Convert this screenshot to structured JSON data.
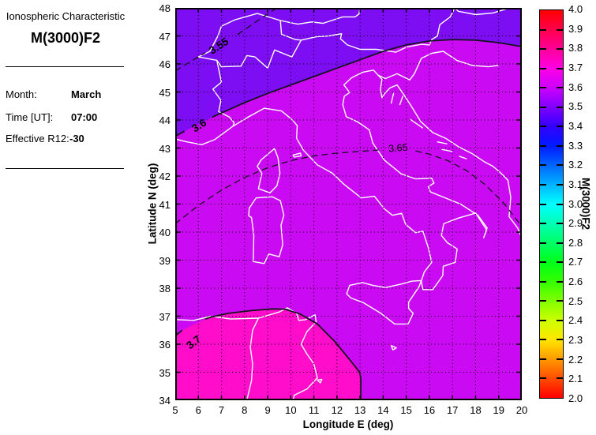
{
  "panel": {
    "heading": "Ionospheric Characteristic",
    "title": "M(3000)F2",
    "rows": [
      {
        "label": "Month:",
        "value": "March"
      },
      {
        "label": "Time [UT]:",
        "value": "07:00"
      },
      {
        "label": "Effective R12:",
        "value": "-30"
      }
    ]
  },
  "axes": {
    "xlabel": "Longitude E (deg)",
    "ylabel": "Latitude N (deg)",
    "xticks": [
      "5",
      "6",
      "7",
      "8",
      "9",
      "10",
      "11",
      "12",
      "13",
      "14",
      "15",
      "16",
      "17",
      "18",
      "19",
      "20"
    ],
    "yticks": [
      "48",
      "47",
      "46",
      "45",
      "44",
      "43",
      "42",
      "41",
      "40",
      "39",
      "38",
      "37",
      "36",
      "35",
      "34"
    ]
  },
  "colorbar": {
    "label": "M(3000)F2",
    "ticks": [
      "4.0",
      "3.9",
      "3.8",
      "3.7",
      "3.6",
      "3.5",
      "3.4",
      "3.3",
      "3.2",
      "3.1",
      "3.0",
      "2.9",
      "2.8",
      "2.7",
      "2.6",
      "2.5",
      "2.4",
      "2.3",
      "2.2",
      "2.1",
      "2.0"
    ],
    "colors": [
      "#FF0000",
      "#FF004D",
      "#FF0099",
      "#FF00E5",
      "#CC00FF",
      "#8000FF",
      "#3300FF",
      "#001AFF",
      "#0066FF",
      "#00B3FF",
      "#00FFFF",
      "#00FFB3",
      "#00FF66",
      "#00FF1A",
      "#33FF00",
      "#80FF00",
      "#CCFF00",
      "#FFE600",
      "#FF9900",
      "#FF4D00",
      "#FF0000"
    ]
  },
  "chart_data": {
    "type": "filled-contour-map",
    "title": "M(3000)F2",
    "xlabel": "Longitude E (deg)",
    "ylabel": "Latitude N (deg)",
    "xlim": [
      5,
      20
    ],
    "ylim": [
      34,
      48
    ],
    "grid": true,
    "grid_style": "dotted",
    "colorbar": {
      "label": "M(3000)F2",
      "min": 2.0,
      "max": 4.0,
      "tick_step": 0.1,
      "orientation": "vertical-right"
    },
    "regions": [
      {
        "band": "3.5-3.6",
        "color": "#7D0DF2",
        "where": "northwest corner above 3.6 contour (Alps)"
      },
      {
        "band": "3.6-3.7",
        "color": "#CA0AF2",
        "where": "main map area"
      },
      {
        "band": "3.7-3.8",
        "color": "#FF0DCB",
        "where": "southwest corner below 3.7 contour (Tunisia / Strait of Sicily)"
      }
    ],
    "coastline_color": "#FFFFFF",
    "contours": [
      {
        "level": 3.55,
        "label": "3.55",
        "style": "dashed",
        "bold": true,
        "label_pos": [
          6.9,
          46.62
        ],
        "label_rotation": -33,
        "gap": [
          6.35,
          7.6
        ],
        "points": [
          [
            5,
            45.75
          ],
          [
            5.7,
            46.1
          ],
          [
            6.3,
            46.4
          ],
          [
            7.0,
            46.72
          ],
          [
            7.7,
            47.05
          ],
          [
            8.4,
            47.45
          ],
          [
            9.0,
            47.78
          ],
          [
            9.4,
            48.0
          ]
        ]
      },
      {
        "level": 3.6,
        "label": "3.6",
        "style": "solid",
        "bold": true,
        "label_pos": [
          6.05,
          43.78
        ],
        "label_rotation": -33,
        "gap": [
          5.45,
          6.55
        ],
        "points": [
          [
            5,
            43.42
          ],
          [
            5.4,
            43.6
          ],
          [
            6.6,
            44.1
          ],
          [
            7.0,
            44.25
          ],
          [
            8.0,
            44.62
          ],
          [
            9.0,
            44.95
          ],
          [
            10.0,
            45.25
          ],
          [
            11.0,
            45.55
          ],
          [
            12.0,
            45.85
          ],
          [
            13.0,
            46.15
          ],
          [
            14.0,
            46.45
          ],
          [
            15.0,
            46.68
          ],
          [
            16.0,
            46.82
          ],
          [
            17.0,
            46.87
          ],
          [
            18.0,
            46.85
          ],
          [
            19.0,
            46.76
          ],
          [
            20,
            46.62
          ]
        ]
      },
      {
        "level": 3.65,
        "label": "3.65",
        "style": "dashed",
        "bold": false,
        "label_pos": [
          14.65,
          42.98
        ],
        "label_rotation": -4,
        "gap": [
          13.85,
          15.35
        ],
        "points": [
          [
            5,
            40.3
          ],
          [
            6,
            40.95
          ],
          [
            7,
            41.5
          ],
          [
            8,
            41.95
          ],
          [
            9,
            42.3
          ],
          [
            10,
            42.55
          ],
          [
            11,
            42.72
          ],
          [
            12,
            42.82
          ],
          [
            13,
            42.88
          ],
          [
            13.8,
            42.93
          ],
          [
            15.4,
            42.9
          ],
          [
            16,
            42.78
          ],
          [
            16.8,
            42.55
          ],
          [
            17.6,
            42.2
          ],
          [
            18.4,
            41.7
          ],
          [
            19.2,
            41.05
          ],
          [
            20,
            40.2
          ]
        ]
      },
      {
        "level": 3.7,
        "label": "3.7",
        "style": "solid",
        "bold": true,
        "label_pos": [
          5.82,
          36.05
        ],
        "label_rotation": -38,
        "gap": [
          5.35,
          6.25
        ],
        "points": [
          [
            5,
            36.3
          ],
          [
            5.3,
            36.5
          ],
          [
            6.3,
            36.9
          ],
          [
            6.6,
            36.98
          ],
          [
            7.3,
            37.1
          ],
          [
            8.3,
            37.2
          ],
          [
            9.2,
            37.26
          ],
          [
            9.75,
            37.25
          ],
          [
            10.4,
            37.08
          ],
          [
            11.15,
            36.72
          ],
          [
            11.9,
            36.1
          ],
          [
            12.6,
            35.4
          ],
          [
            12.98,
            35.0
          ],
          [
            13.03,
            34.8
          ],
          [
            13.03,
            34.0
          ]
        ]
      }
    ]
  }
}
